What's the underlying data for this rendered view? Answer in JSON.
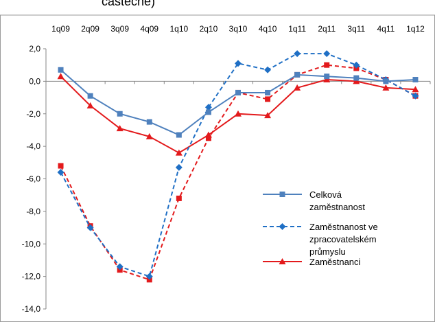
{
  "chart_data": {
    "type": "line",
    "title_fragment": "částečně)",
    "categories": [
      "1q09",
      "2q09",
      "3q09",
      "4q09",
      "1q10",
      "2q10",
      "3q10",
      "4q10",
      "1q11",
      "2q11",
      "3q11",
      "4q11",
      "1q12"
    ],
    "ylim": [
      -14,
      2
    ],
    "yticks": [
      2,
      0,
      -2,
      -4,
      -6,
      -8,
      -10,
      -12,
      -14
    ],
    "ytick_labels": [
      "2,0",
      "0,0",
      "-2,0",
      "-4,0",
      "-6,0",
      "-8,0",
      "-10,0",
      "-12,0",
      "-14,0"
    ],
    "grid": false,
    "legend_position": "right",
    "series": [
      {
        "name_lines": [
          "Celková",
          "zaměstnanost"
        ],
        "color": "#4F81BD",
        "marker": "square",
        "dash": "solid",
        "values": [
          0.7,
          -0.9,
          -2.0,
          -2.5,
          -3.3,
          -1.9,
          -0.7,
          -0.7,
          0.4,
          0.3,
          0.2,
          0.0,
          0.1
        ]
      },
      {
        "name_lines": [
          "Zaměstnanost ve",
          "zpracovatelském",
          "průmyslu"
        ],
        "color": "#1F6FC5",
        "marker": "diamond",
        "dash": "dashed",
        "values": [
          -5.6,
          -9.0,
          -11.4,
          -12.0,
          -5.3,
          -1.6,
          1.1,
          0.7,
          1.7,
          1.7,
          1.0,
          0.1,
          -0.9
        ]
      },
      {
        "name_lines": [
          "Zaměstnanci"
        ],
        "color": "#E31A1C",
        "marker": "triangle",
        "dash": "solid",
        "values": [
          0.3,
          -1.5,
          -2.9,
          -3.4,
          -4.4,
          -3.3,
          -2.0,
          -2.1,
          -0.4,
          0.1,
          0.0,
          -0.4,
          -0.5
        ]
      },
      {
        "name_lines": [],
        "color": "#E31A1C",
        "marker": "square",
        "dash": "dashed",
        "values": [
          -5.2,
          -8.9,
          -11.6,
          -12.2,
          -7.2,
          -3.5,
          -0.7,
          -1.1,
          0.4,
          1.0,
          0.8,
          0.1,
          -0.9
        ]
      }
    ]
  }
}
